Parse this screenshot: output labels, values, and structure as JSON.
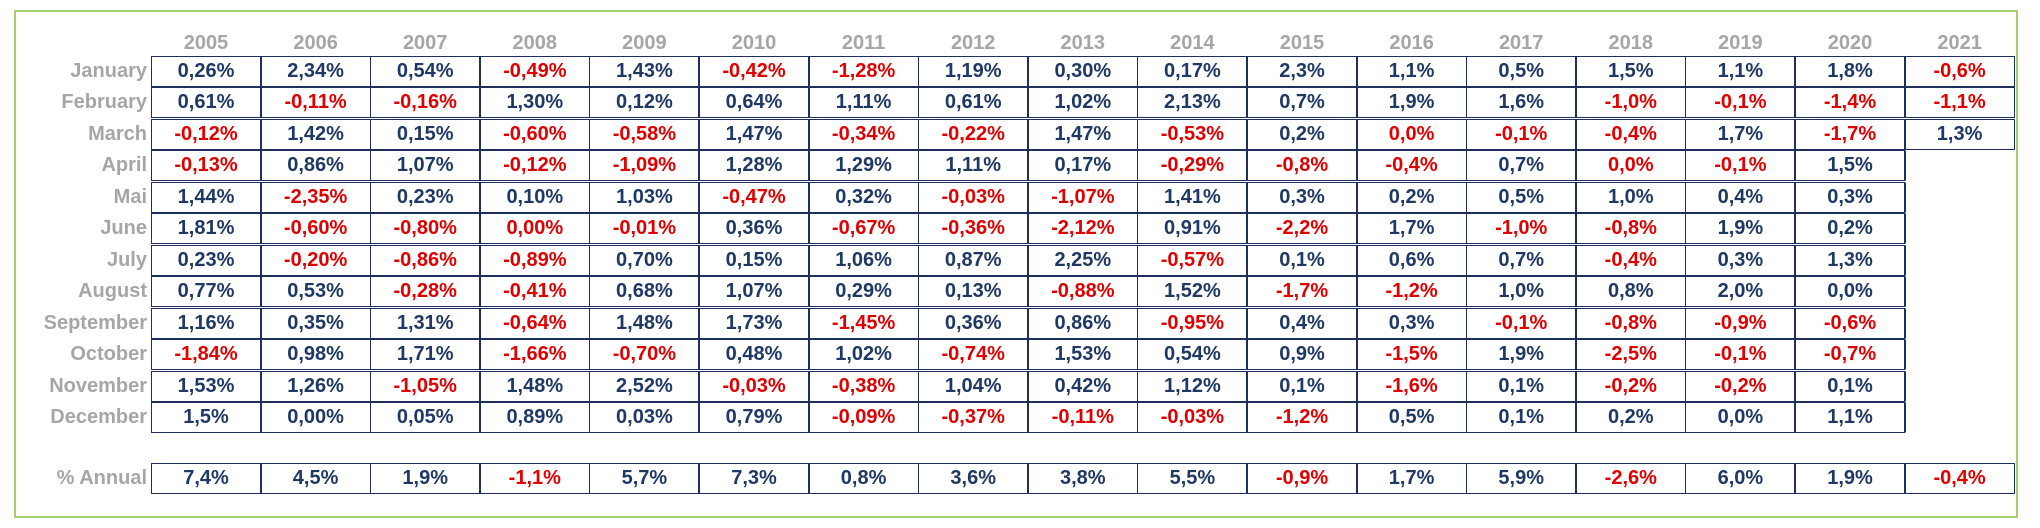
{
  "table": {
    "years": [
      "2005",
      "2006",
      "2007",
      "2008",
      "2009",
      "2010",
      "2011",
      "2012",
      "2013",
      "2014",
      "2015",
      "2016",
      "2017",
      "2018",
      "2019",
      "2020",
      "2021"
    ],
    "months": [
      "January",
      "February",
      "March",
      "April",
      "Mai",
      "June",
      "July",
      "August",
      "September",
      "October",
      "November",
      "December"
    ],
    "annual_label": "% Annual",
    "rows": [
      [
        "0,26%",
        "2,34%",
        "0,54%",
        "-0,49%",
        "1,43%",
        "-0,42%",
        "-1,28%",
        "1,19%",
        "0,30%",
        "0,17%",
        "2,3%",
        "1,1%",
        "0,5%",
        "1,5%",
        "1,1%",
        "1,8%",
        "-0,6%"
      ],
      [
        "0,61%",
        "-0,11%",
        "-0,16%",
        "1,30%",
        "0,12%",
        "0,64%",
        "1,11%",
        "0,61%",
        "1,02%",
        "2,13%",
        "0,7%",
        "1,9%",
        "1,6%",
        "-1,0%",
        "-0,1%",
        "-1,4%",
        "-1,1%"
      ],
      [
        "-0,12%",
        "1,42%",
        "0,15%",
        "-0,60%",
        "-0,58%",
        "1,47%",
        "-0,34%",
        "-0,22%",
        "1,47%",
        "-0,53%",
        "0,2%",
        "0,0%",
        "-0,1%",
        "-0,4%",
        "1,7%",
        "-1,7%",
        "1,3%"
      ],
      [
        "-0,13%",
        "0,86%",
        "1,07%",
        "-0,12%",
        "-1,09%",
        "1,28%",
        "1,29%",
        "1,11%",
        "0,17%",
        "-0,29%",
        "-0,8%",
        "-0,4%",
        "0,7%",
        "0,0%",
        "-0,1%",
        "1,5%",
        ""
      ],
      [
        "1,44%",
        "-2,35%",
        "0,23%",
        "0,10%",
        "1,03%",
        "-0,47%",
        "0,32%",
        "-0,03%",
        "-1,07%",
        "1,41%",
        "0,3%",
        "0,2%",
        "0,5%",
        "1,0%",
        "0,4%",
        "0,3%",
        ""
      ],
      [
        "1,81%",
        "-0,60%",
        "-0,80%",
        "0,00%",
        "-0,01%",
        "0,36%",
        "-0,67%",
        "-0,36%",
        "-2,12%",
        "0,91%",
        "-2,2%",
        "1,7%",
        "-1,0%",
        "-0,8%",
        "1,9%",
        "0,2%",
        ""
      ],
      [
        "0,23%",
        "-0,20%",
        "-0,86%",
        "-0,89%",
        "0,70%",
        "0,15%",
        "1,06%",
        "0,87%",
        "2,25%",
        "-0,57%",
        "0,1%",
        "0,6%",
        "0,7%",
        "-0,4%",
        "0,3%",
        "1,3%",
        ""
      ],
      [
        "0,77%",
        "0,53%",
        "-0,28%",
        "-0,41%",
        "0,68%",
        "1,07%",
        "0,29%",
        "0,13%",
        "-0,88%",
        "1,52%",
        "-1,7%",
        "-1,2%",
        "1,0%",
        "0,8%",
        "2,0%",
        "0,0%",
        ""
      ],
      [
        "1,16%",
        "0,35%",
        "1,31%",
        "-0,64%",
        "1,48%",
        "1,73%",
        "-1,45%",
        "0,36%",
        "0,86%",
        "-0,95%",
        "0,4%",
        "0,3%",
        "-0,1%",
        "-0,8%",
        "-0,9%",
        "-0,6%",
        ""
      ],
      [
        "-1,84%",
        "0,98%",
        "1,71%",
        "-1,66%",
        "-0,70%",
        "0,48%",
        "1,02%",
        "-0,74%",
        "1,53%",
        "0,54%",
        "0,9%",
        "-1,5%",
        "1,9%",
        "-2,5%",
        "-0,1%",
        "-0,7%",
        ""
      ],
      [
        "1,53%",
        "1,26%",
        "-1,05%",
        "1,48%",
        "2,52%",
        "-0,03%",
        "-0,38%",
        "1,04%",
        "0,42%",
        "1,12%",
        "0,1%",
        "-1,6%",
        "0,1%",
        "-0,2%",
        "-0,2%",
        "0,1%",
        ""
      ],
      [
        "1,5%",
        "0,00%",
        "0,05%",
        "0,89%",
        "0,03%",
        "0,79%",
        "-0,09%",
        "-0,37%",
        "-0,11%",
        "-0,03%",
        "-1,2%",
        "0,5%",
        "0,1%",
        "0,2%",
        "0,0%",
        "1,1%",
        ""
      ]
    ],
    "annual": [
      "7,4%",
      "4,5%",
      "1,9%",
      "-1,1%",
      "5,7%",
      "7,3%",
      "0,8%",
      "3,6%",
      "3,8%",
      "5,5%",
      "-0,9%",
      "1,7%",
      "5,9%",
      "-2,6%",
      "6,0%",
      "1,9%",
      "-0,4%"
    ],
    "red_cells": [
      [
        0,
        3
      ],
      [
        0,
        5
      ],
      [
        0,
        6
      ],
      [
        0,
        16
      ],
      [
        1,
        1
      ],
      [
        1,
        2
      ],
      [
        1,
        13
      ],
      [
        1,
        14
      ],
      [
        1,
        15
      ],
      [
        1,
        16
      ],
      [
        2,
        0
      ],
      [
        2,
        3
      ],
      [
        2,
        4
      ],
      [
        2,
        6
      ],
      [
        2,
        7
      ],
      [
        2,
        9
      ],
      [
        2,
        11
      ],
      [
        2,
        12
      ],
      [
        2,
        13
      ],
      [
        2,
        15
      ],
      [
        3,
        0
      ],
      [
        3,
        3
      ],
      [
        3,
        4
      ],
      [
        3,
        9
      ],
      [
        3,
        10
      ],
      [
        3,
        11
      ],
      [
        3,
        13
      ],
      [
        3,
        14
      ],
      [
        4,
        1
      ],
      [
        4,
        5
      ],
      [
        4,
        7
      ],
      [
        4,
        8
      ],
      [
        5,
        1
      ],
      [
        5,
        2
      ],
      [
        5,
        3
      ],
      [
        5,
        4
      ],
      [
        5,
        6
      ],
      [
        5,
        7
      ],
      [
        5,
        8
      ],
      [
        5,
        10
      ],
      [
        5,
        12
      ],
      [
        5,
        13
      ],
      [
        6,
        1
      ],
      [
        6,
        2
      ],
      [
        6,
        3
      ],
      [
        6,
        9
      ],
      [
        6,
        13
      ],
      [
        7,
        2
      ],
      [
        7,
        3
      ],
      [
        7,
        8
      ],
      [
        7,
        10
      ],
      [
        7,
        11
      ],
      [
        8,
        3
      ],
      [
        8,
        6
      ],
      [
        8,
        9
      ],
      [
        8,
        12
      ],
      [
        8,
        13
      ],
      [
        8,
        14
      ],
      [
        8,
        15
      ],
      [
        9,
        0
      ],
      [
        9,
        3
      ],
      [
        9,
        4
      ],
      [
        9,
        7
      ],
      [
        9,
        11
      ],
      [
        9,
        13
      ],
      [
        9,
        14
      ],
      [
        9,
        15
      ],
      [
        10,
        2
      ],
      [
        10,
        5
      ],
      [
        10,
        6
      ],
      [
        10,
        11
      ],
      [
        10,
        13
      ],
      [
        10,
        14
      ],
      [
        11,
        6
      ],
      [
        11,
        7
      ],
      [
        11,
        8
      ],
      [
        11,
        9
      ],
      [
        11,
        10
      ]
    ],
    "colors": {
      "positive": "#1f3864",
      "negative": "#e00000",
      "label": "#a6a6a6",
      "frame": "#a8cf6e"
    }
  }
}
